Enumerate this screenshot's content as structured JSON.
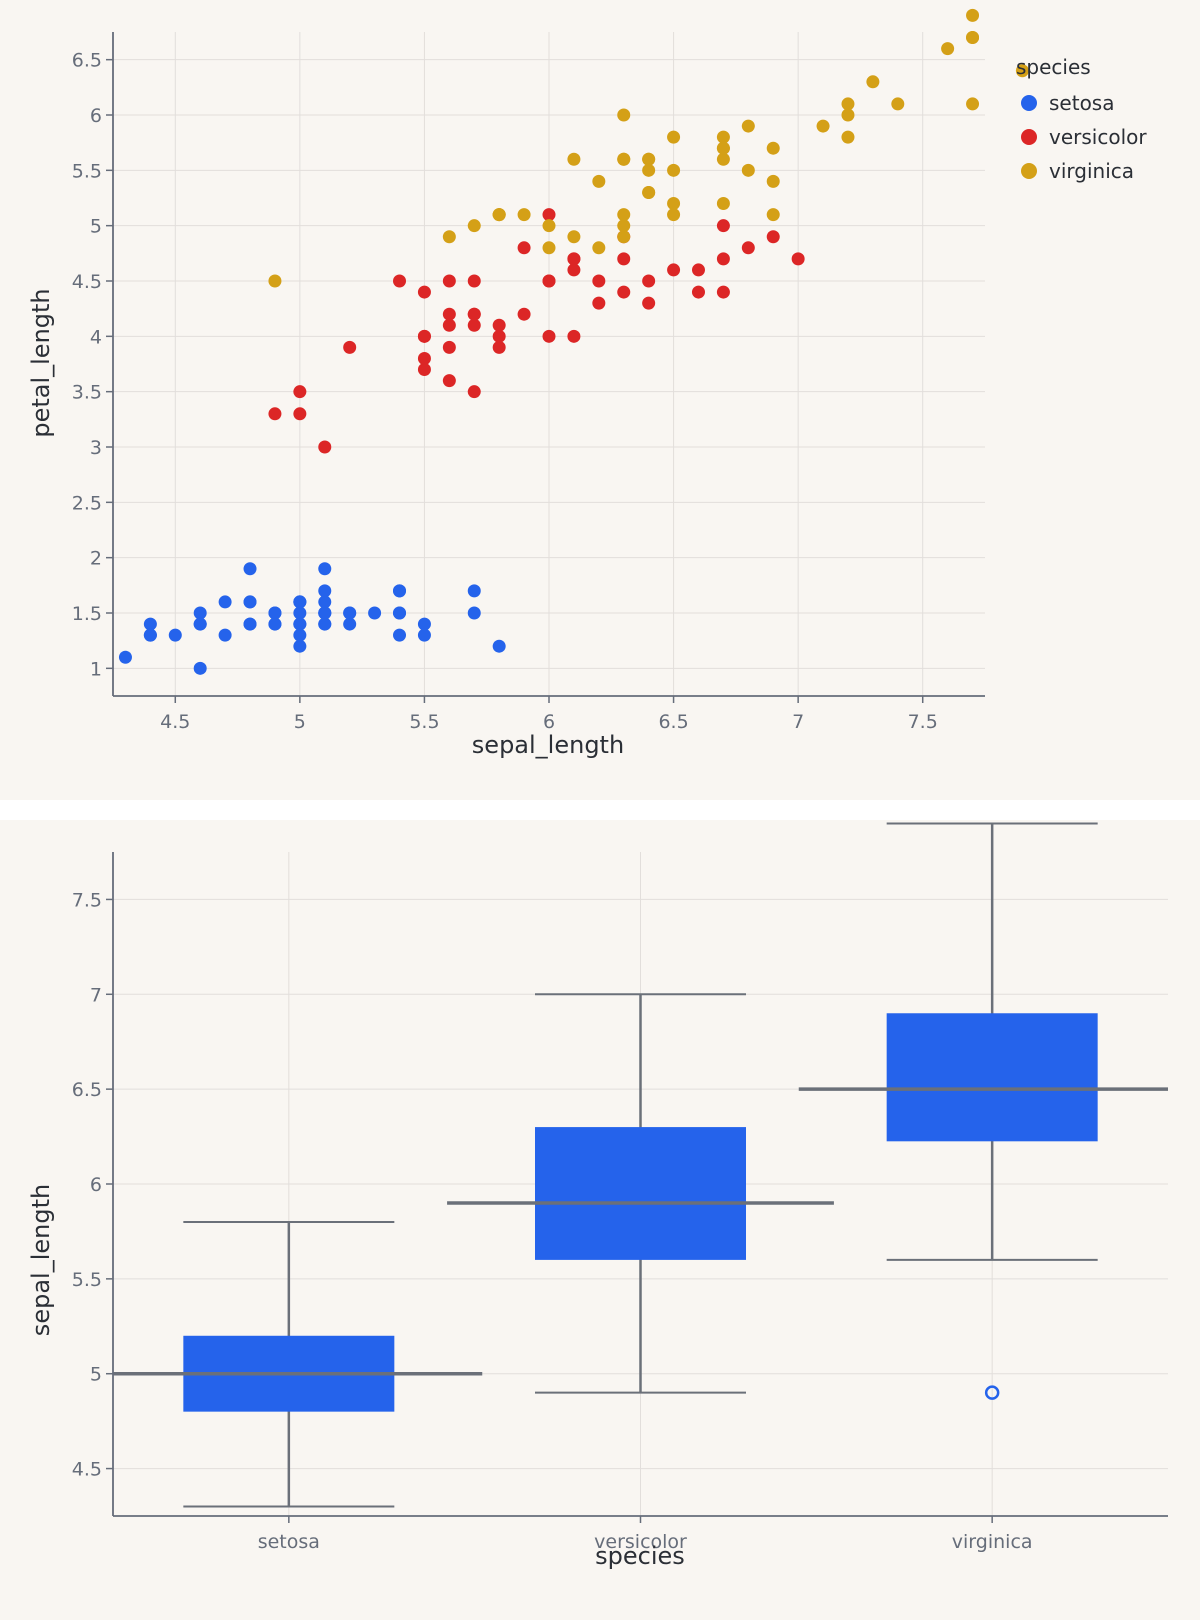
{
  "colors": {
    "background": "#f9f6f2",
    "grid": "#e2dedb",
    "axis": "#666d7a",
    "box_fill": "#2563eb",
    "whisker": "#6b7079",
    "outlier": "#2563eb"
  },
  "chart_data": [
    {
      "type": "scatter",
      "xlabel": "sepal_length",
      "ylabel": "petal_length",
      "xlim": [
        4.25,
        7.75
      ],
      "ylim": [
        0.75,
        6.75
      ],
      "xticks": [
        4.5,
        5,
        5.5,
        6,
        6.5,
        7,
        7.5
      ],
      "xtick_labels": [
        "4.5",
        "5",
        "5.5",
        "6",
        "6.5",
        "7",
        "7.5"
      ],
      "yticks": [
        1,
        1.5,
        2,
        2.5,
        3,
        3.5,
        4,
        4.5,
        5,
        5.5,
        6,
        6.5
      ],
      "ytick_labels": [
        "1",
        "1.5",
        "2",
        "2.5",
        "3",
        "3.5",
        "4",
        "4.5",
        "5",
        "5.5",
        "6",
        "6.5"
      ],
      "grid": true,
      "legend": {
        "title": "species",
        "position": "top-right"
      },
      "series": [
        {
          "name": "setosa",
          "color": "#2563eb",
          "points": [
            [
              5.1,
              1.4
            ],
            [
              4.9,
              1.4
            ],
            [
              4.7,
              1.3
            ],
            [
              4.6,
              1.5
            ],
            [
              5.0,
              1.4
            ],
            [
              5.4,
              1.7
            ],
            [
              4.6,
              1.4
            ],
            [
              5.0,
              1.5
            ],
            [
              4.4,
              1.4
            ],
            [
              4.9,
              1.5
            ],
            [
              5.4,
              1.5
            ],
            [
              4.8,
              1.6
            ],
            [
              4.8,
              1.4
            ],
            [
              4.3,
              1.1
            ],
            [
              5.8,
              1.2
            ],
            [
              5.7,
              1.5
            ],
            [
              5.4,
              1.3
            ],
            [
              5.1,
              1.4
            ],
            [
              5.7,
              1.7
            ],
            [
              5.1,
              1.5
            ],
            [
              5.4,
              1.7
            ],
            [
              5.1,
              1.5
            ],
            [
              4.6,
              1.0
            ],
            [
              5.1,
              1.7
            ],
            [
              4.8,
              1.9
            ],
            [
              5.0,
              1.6
            ],
            [
              5.0,
              1.6
            ],
            [
              5.2,
              1.5
            ],
            [
              5.2,
              1.4
            ],
            [
              4.7,
              1.6
            ],
            [
              4.8,
              1.6
            ],
            [
              5.4,
              1.5
            ],
            [
              5.2,
              1.5
            ],
            [
              5.5,
              1.4
            ],
            [
              4.9,
              1.5
            ],
            [
              5.0,
              1.2
            ],
            [
              5.5,
              1.3
            ],
            [
              4.9,
              1.4
            ],
            [
              4.4,
              1.3
            ],
            [
              5.1,
              1.5
            ],
            [
              5.0,
              1.3
            ],
            [
              4.5,
              1.3
            ],
            [
              4.4,
              1.3
            ],
            [
              5.0,
              1.6
            ],
            [
              5.1,
              1.9
            ],
            [
              4.8,
              1.4
            ],
            [
              5.1,
              1.6
            ],
            [
              4.6,
              1.4
            ],
            [
              5.3,
              1.5
            ],
            [
              5.0,
              1.4
            ]
          ]
        },
        {
          "name": "versicolor",
          "color": "#dc2626",
          "points": [
            [
              7.0,
              4.7
            ],
            [
              6.4,
              4.5
            ],
            [
              6.9,
              4.9
            ],
            [
              5.5,
              4.0
            ],
            [
              6.5,
              4.6
            ],
            [
              5.7,
              4.5
            ],
            [
              6.3,
              4.7
            ],
            [
              4.9,
              3.3
            ],
            [
              6.6,
              4.6
            ],
            [
              5.2,
              3.9
            ],
            [
              5.0,
              3.5
            ],
            [
              5.9,
              4.2
            ],
            [
              6.0,
              4.0
            ],
            [
              6.1,
              4.7
            ],
            [
              5.6,
              3.6
            ],
            [
              6.7,
              4.4
            ],
            [
              5.6,
              4.5
            ],
            [
              5.8,
              4.1
            ],
            [
              6.2,
              4.5
            ],
            [
              5.6,
              3.9
            ],
            [
              5.9,
              4.8
            ],
            [
              6.1,
              4.0
            ],
            [
              6.3,
              4.9
            ],
            [
              6.1,
              4.7
            ],
            [
              6.4,
              4.3
            ],
            [
              6.6,
              4.4
            ],
            [
              6.8,
              4.8
            ],
            [
              6.7,
              5.0
            ],
            [
              6.0,
              4.5
            ],
            [
              5.7,
              3.5
            ],
            [
              5.5,
              3.8
            ],
            [
              5.5,
              3.7
            ],
            [
              5.8,
              3.9
            ],
            [
              6.0,
              5.1
            ],
            [
              5.4,
              4.5
            ],
            [
              6.0,
              4.5
            ],
            [
              6.7,
              4.7
            ],
            [
              6.3,
              4.4
            ],
            [
              5.6,
              4.1
            ],
            [
              5.5,
              4.0
            ],
            [
              5.5,
              4.4
            ],
            [
              6.1,
              4.6
            ],
            [
              5.8,
              4.0
            ],
            [
              5.0,
              3.3
            ],
            [
              5.6,
              4.2
            ],
            [
              5.7,
              4.2
            ],
            [
              5.7,
              4.2
            ],
            [
              6.2,
              4.3
            ],
            [
              5.1,
              3.0
            ],
            [
              5.7,
              4.1
            ]
          ]
        },
        {
          "name": "virginica",
          "color": "#d4a017",
          "points": [
            [
              6.3,
              6.0
            ],
            [
              5.8,
              5.1
            ],
            [
              7.1,
              5.9
            ],
            [
              6.3,
              5.6
            ],
            [
              6.5,
              5.8
            ],
            [
              7.6,
              6.6
            ],
            [
              4.9,
              4.5
            ],
            [
              7.3,
              6.3
            ],
            [
              6.7,
              5.8
            ],
            [
              7.2,
              6.1
            ],
            [
              6.5,
              5.1
            ],
            [
              6.4,
              5.3
            ],
            [
              6.8,
              5.5
            ],
            [
              5.7,
              5.0
            ],
            [
              5.8,
              5.1
            ],
            [
              6.4,
              5.3
            ],
            [
              6.5,
              5.5
            ],
            [
              7.7,
              6.7
            ],
            [
              7.7,
              6.9
            ],
            [
              6.0,
              5.0
            ],
            [
              6.9,
              5.7
            ],
            [
              5.6,
              4.9
            ],
            [
              7.7,
              6.7
            ],
            [
              6.3,
              4.9
            ],
            [
              6.7,
              5.7
            ],
            [
              7.2,
              6.0
            ],
            [
              6.2,
              4.8
            ],
            [
              6.1,
              4.9
            ],
            [
              6.4,
              5.6
            ],
            [
              7.2,
              5.8
            ],
            [
              7.4,
              6.1
            ],
            [
              7.9,
              6.4
            ],
            [
              6.4,
              5.6
            ],
            [
              6.3,
              5.1
            ],
            [
              6.1,
              5.6
            ],
            [
              7.7,
              6.1
            ],
            [
              6.3,
              5.6
            ],
            [
              6.4,
              5.5
            ],
            [
              6.0,
              4.8
            ],
            [
              6.9,
              5.4
            ],
            [
              6.7,
              5.6
            ],
            [
              6.9,
              5.1
            ],
            [
              5.8,
              5.1
            ],
            [
              6.8,
              5.9
            ],
            [
              6.7,
              5.7
            ],
            [
              6.7,
              5.2
            ],
            [
              6.3,
              5.0
            ],
            [
              6.5,
              5.2
            ],
            [
              6.2,
              5.4
            ],
            [
              5.9,
              5.1
            ]
          ]
        }
      ]
    },
    {
      "type": "box",
      "xlabel": "species",
      "ylabel": "sepal_length",
      "ylim": [
        4.25,
        7.75
      ],
      "yticks": [
        4.5,
        5,
        5.5,
        6,
        6.5,
        7,
        7.5
      ],
      "ytick_labels": [
        "4.5",
        "5",
        "5.5",
        "6",
        "6.5",
        "7",
        "7.5"
      ],
      "grid": true,
      "categories": [
        "setosa",
        "versicolor",
        "virginica"
      ],
      "boxes": [
        {
          "name": "setosa",
          "whisker_low": 4.3,
          "q1": 4.8,
          "median": 5.0,
          "q3": 5.2,
          "whisker_high": 5.8,
          "outliers": []
        },
        {
          "name": "versicolor",
          "whisker_low": 4.9,
          "q1": 5.6,
          "median": 5.9,
          "q3": 6.3,
          "whisker_high": 7.0,
          "outliers": []
        },
        {
          "name": "virginica",
          "whisker_low": 5.6,
          "q1": 6.225,
          "median": 6.5,
          "q3": 6.9,
          "whisker_high": 7.9,
          "outliers": [
            4.9
          ]
        }
      ]
    }
  ]
}
